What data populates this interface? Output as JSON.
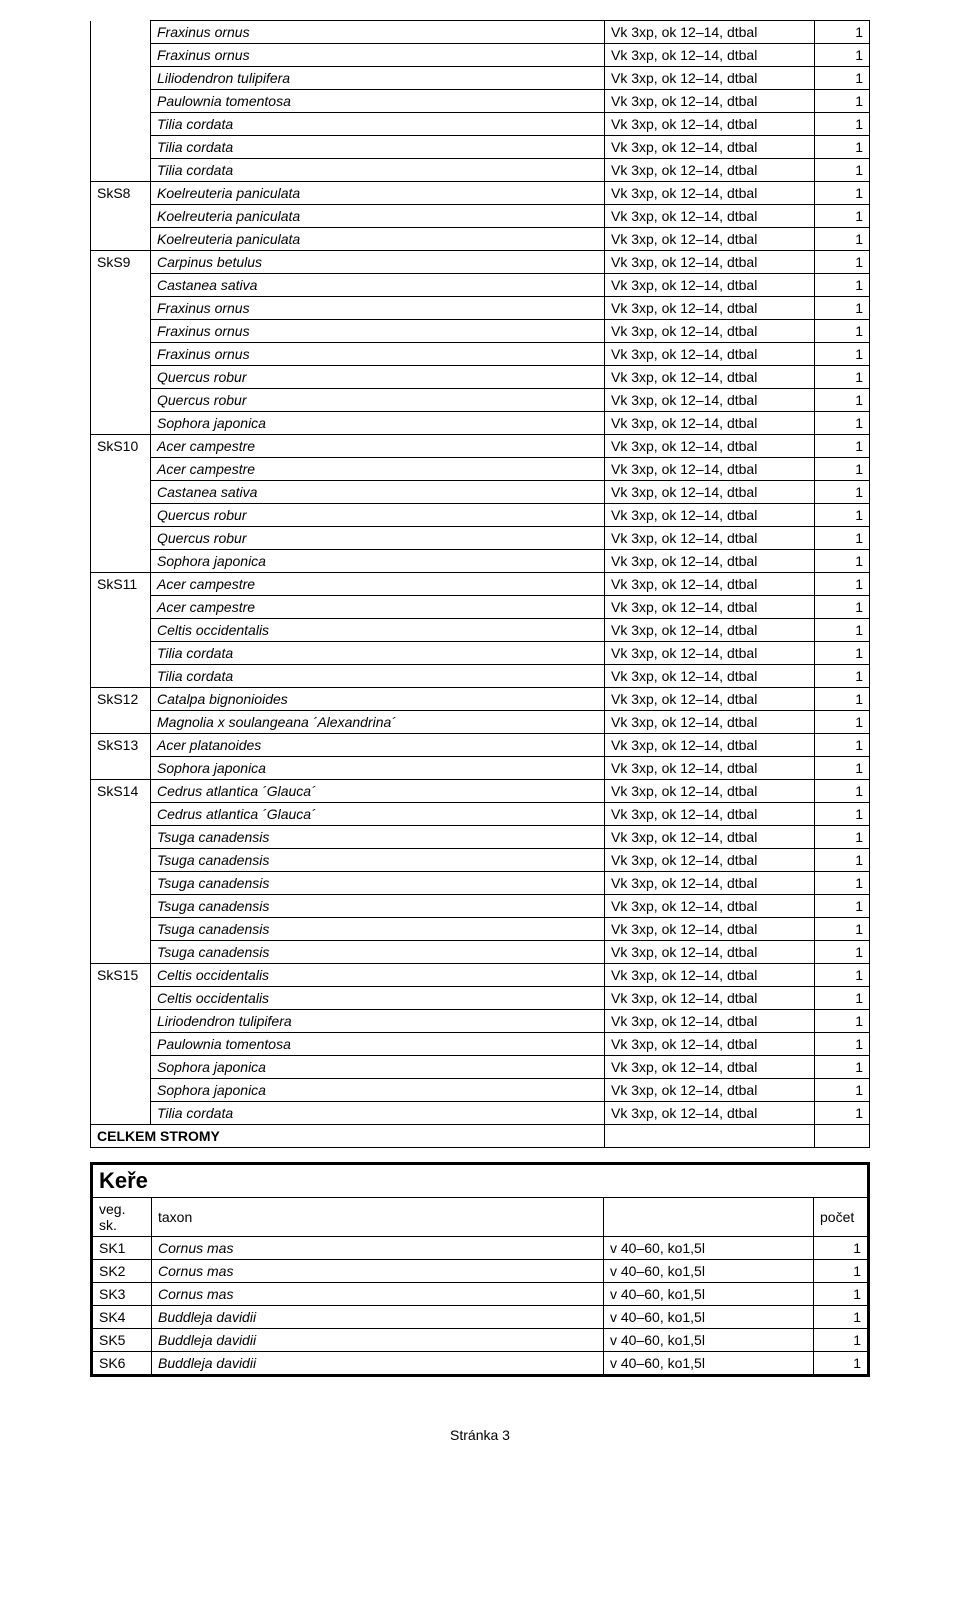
{
  "footer": "Stránka 3",
  "spec": "Vk 3xp, ok 12–14, dtbal",
  "kere_spec": "v 40–60, ko1,5l",
  "groups": [
    {
      "id": "",
      "cont": true,
      "rows": [
        {
          "t": "Fraxinus ornus",
          "c": "1"
        },
        {
          "t": "Fraxinus ornus",
          "c": "1"
        },
        {
          "t": "Liliodendron tulipifera",
          "c": "1"
        },
        {
          "t": "Paulownia tomentosa",
          "c": "1"
        },
        {
          "t": "Tilia cordata",
          "c": "1"
        },
        {
          "t": "Tilia cordata",
          "c": "1"
        },
        {
          "t": "Tilia cordata",
          "c": "1"
        }
      ]
    },
    {
      "id": "SkS8",
      "rows": [
        {
          "t": "Koelreuteria paniculata",
          "c": "1"
        },
        {
          "t": "Koelreuteria paniculata",
          "c": "1"
        },
        {
          "t": "Koelreuteria paniculata",
          "c": "1"
        }
      ]
    },
    {
      "id": "SkS9",
      "rows": [
        {
          "t": "Carpinus betulus",
          "c": "1"
        },
        {
          "t": "Castanea sativa",
          "c": "1"
        },
        {
          "t": "Fraxinus ornus",
          "c": "1"
        },
        {
          "t": "Fraxinus ornus",
          "c": "1"
        },
        {
          "t": "Fraxinus ornus",
          "c": "1"
        },
        {
          "t": "Quercus robur",
          "c": "1"
        },
        {
          "t": "Quercus robur",
          "c": "1"
        },
        {
          "t": "Sophora japonica",
          "c": "1"
        }
      ]
    },
    {
      "id": "SkS10",
      "rows": [
        {
          "t": "Acer campestre",
          "c": "1"
        },
        {
          "t": "Acer campestre",
          "c": "1"
        },
        {
          "t": "Castanea sativa",
          "c": "1"
        },
        {
          "t": "Quercus robur",
          "c": "1"
        },
        {
          "t": "Quercus robur",
          "c": "1"
        },
        {
          "t": "Sophora japonica",
          "c": "1"
        }
      ]
    },
    {
      "id": "SkS11",
      "rows": [
        {
          "t": "Acer campestre",
          "c": "1"
        },
        {
          "t": "Acer campestre",
          "c": "1"
        },
        {
          "t": "Celtis occidentalis",
          "c": "1"
        },
        {
          "t": "Tilia cordata",
          "c": "1"
        },
        {
          "t": "Tilia cordata",
          "c": "1"
        }
      ]
    },
    {
      "id": "SkS12",
      "rows": [
        {
          "t": "Catalpa bignonioides",
          "c": "1"
        },
        {
          "t": "Magnolia x soulangeana ´Alexandrina´",
          "c": "1"
        }
      ]
    },
    {
      "id": "SkS13",
      "rows": [
        {
          "t": "Acer platanoides",
          "c": "1"
        },
        {
          "t": "Sophora japonica",
          "c": "1"
        }
      ]
    },
    {
      "id": "SkS14",
      "rows": [
        {
          "t": "Cedrus atlantica ´Glauca´",
          "c": "1"
        },
        {
          "t": "Cedrus atlantica ´Glauca´",
          "c": "1"
        },
        {
          "t": "Tsuga canadensis",
          "c": "1"
        },
        {
          "t": "Tsuga canadensis",
          "c": "1"
        },
        {
          "t": "Tsuga canadensis",
          "c": "1"
        },
        {
          "t": "Tsuga canadensis",
          "c": "1"
        },
        {
          "t": "Tsuga canadensis",
          "c": "1"
        },
        {
          "t": "Tsuga canadensis",
          "c": "1"
        }
      ]
    },
    {
      "id": "SkS15",
      "rows": [
        {
          "t": "Celtis occidentalis",
          "c": "1"
        },
        {
          "t": "Celtis occidentalis",
          "c": "1"
        },
        {
          "t": "Liriodendron tulipifera",
          "c": "1"
        },
        {
          "t": "Paulownia tomentosa",
          "c": "1"
        },
        {
          "t": "Sophora japonica",
          "c": "1"
        },
        {
          "t": "Sophora japonica",
          "c": "1"
        },
        {
          "t": "Tilia cordata",
          "c": "1"
        }
      ]
    }
  ],
  "total_label": "CELKEM STROMY",
  "section2": {
    "title": "Keře",
    "headers": {
      "group": "veg. sk.",
      "taxon": "taxon",
      "count": "počet"
    },
    "rows": [
      {
        "g": "SK1",
        "t": "Cornus mas",
        "c": "1"
      },
      {
        "g": "SK2",
        "t": "Cornus mas",
        "c": "1"
      },
      {
        "g": "SK3",
        "t": "Cornus mas",
        "c": "1"
      },
      {
        "g": "SK4",
        "t": "Buddleja davidii",
        "c": "1"
      },
      {
        "g": "SK5",
        "t": "Buddleja davidii",
        "c": "1"
      },
      {
        "g": "SK6",
        "t": "Buddleja davidii",
        "c": "1"
      }
    ]
  }
}
